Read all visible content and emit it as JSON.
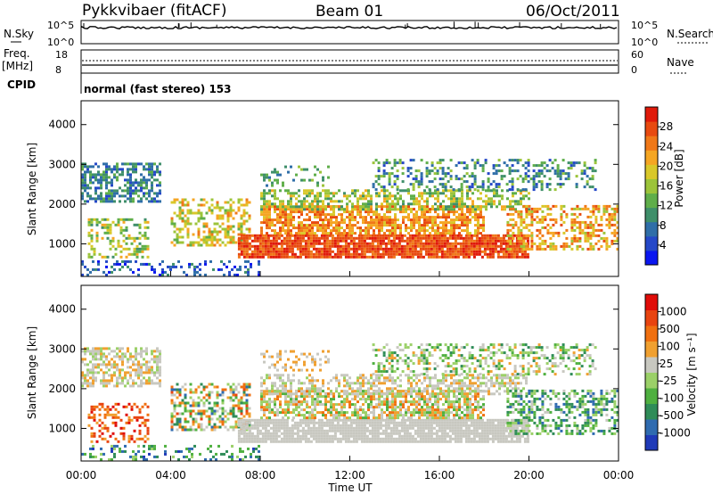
{
  "header": {
    "station": "Pykkvibaer (fitACF)",
    "beam": "Beam 01",
    "date": "06/Oct/2011"
  },
  "panels": {
    "noise": {
      "left_label": "N.Sky",
      "left_ticks": [
        "10^5",
        "10^0"
      ],
      "right_label": "N.Search",
      "right_ticks": [
        "10^5",
        "10^0"
      ]
    },
    "freq": {
      "left_label_1": "Freq.",
      "left_label_2": "[MHz]",
      "left_ticks": [
        "18",
        "8"
      ],
      "right_label": "Nave",
      "right_ticks": [
        "60",
        "0"
      ]
    },
    "cpid": {
      "label": "CPID",
      "text": "normal (fast stereo) 153"
    }
  },
  "chart_data": [
    {
      "type": "heatmap",
      "name": "power",
      "ylabel": "Slant Range [km]",
      "ylim": [
        180,
        4600
      ],
      "y_ticks": [
        "1000",
        "2000",
        "3000",
        "4000"
      ],
      "x_ticks": [
        "00:00",
        "04:00",
        "08:00",
        "12:00",
        "16:00",
        "20:00",
        "00:00"
      ],
      "xlim_hours": [
        0,
        24
      ],
      "colorbar": {
        "label": "Power [dB]",
        "ticks": [
          "4",
          "8",
          "12",
          "16",
          "20",
          "24",
          "28"
        ],
        "colors": [
          "#0a16f0",
          "#2548c8",
          "#2f6ea8",
          "#3f8f6a",
          "#5fae4a",
          "#9cc43a",
          "#d9c82a",
          "#f5a623",
          "#f07818",
          "#e84a10",
          "#e01a0a"
        ]
      }
    },
    {
      "type": "heatmap",
      "name": "velocity",
      "ylabel": "Slant Range [km]",
      "ylim": [
        180,
        4600
      ],
      "y_ticks": [
        "1000",
        "2000",
        "3000",
        "4000"
      ],
      "x_ticks": [
        "00:00",
        "04:00",
        "08:00",
        "12:00",
        "16:00",
        "20:00",
        "00:00"
      ],
      "xlabel": "Time UT",
      "colorbar": {
        "label": "Velocity [m s⁻¹]",
        "ticks": [
          "1000",
          "500",
          "100",
          "25",
          "-25",
          "-100",
          "-500",
          "-1000"
        ],
        "colors": [
          "#1f3ab8",
          "#2f6bb0",
          "#2f8c58",
          "#4fb040",
          "#9bd068",
          "#c8c8c0",
          "#f0a030",
          "#f07010",
          "#e84410",
          "#e00c08"
        ]
      }
    }
  ]
}
